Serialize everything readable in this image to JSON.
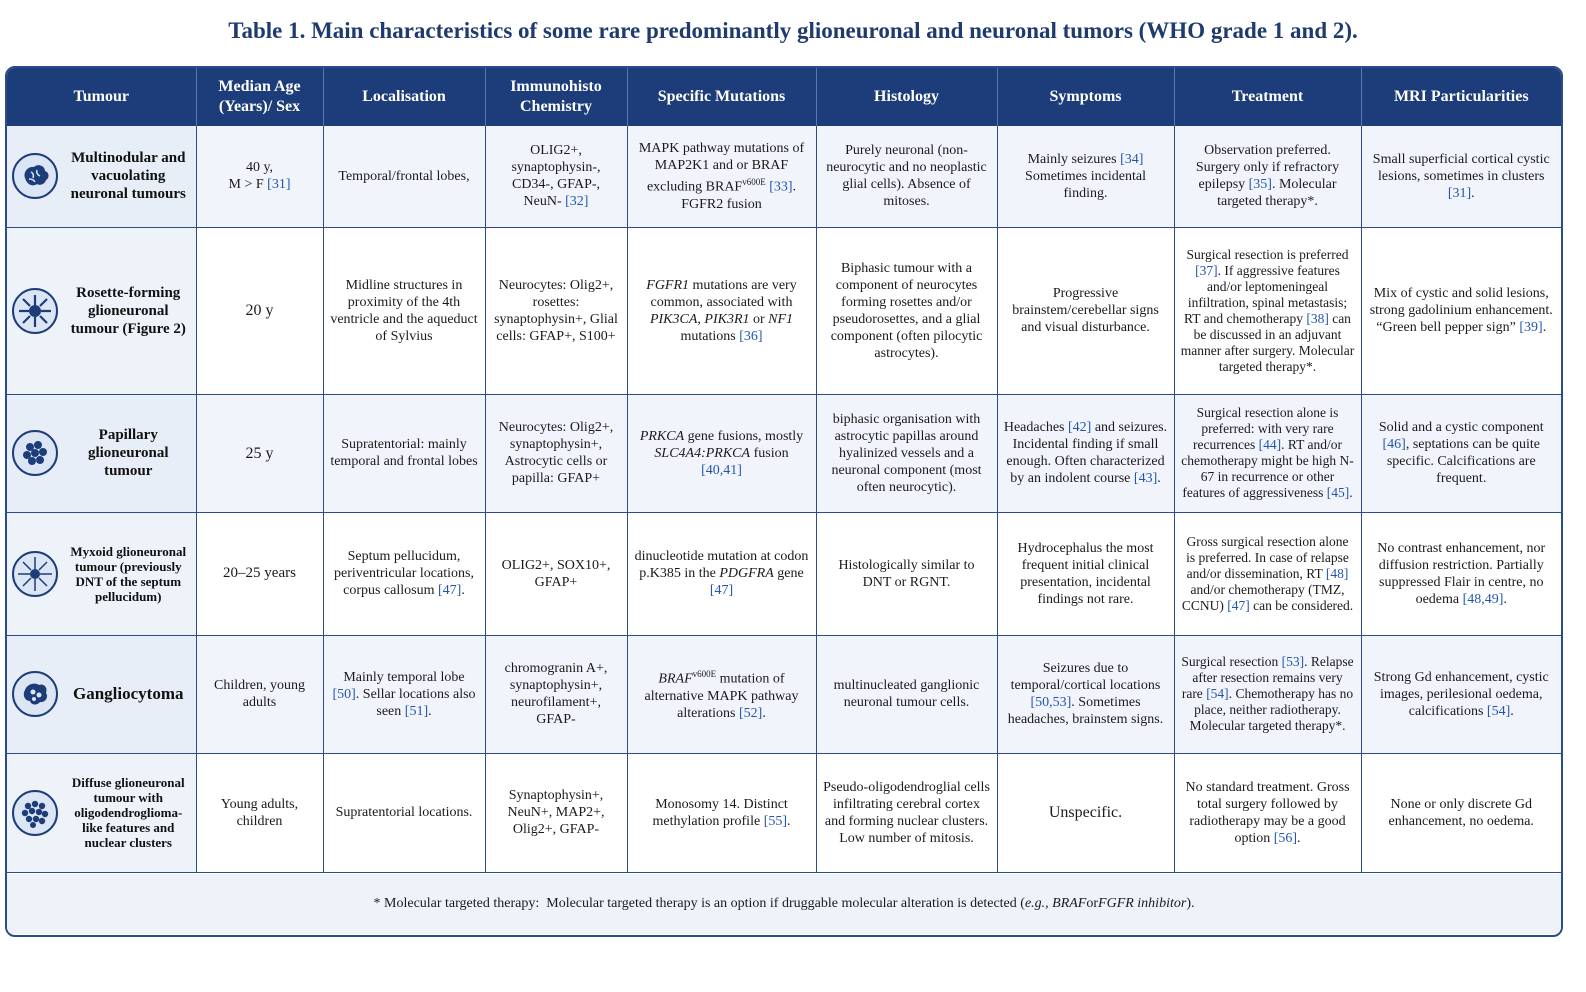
{
  "caption": "Table 1. Main characteristics of some rare predominantly glioneuronal and neuronal tumors (WHO grade 1 and 2).",
  "headers": {
    "tumour": "Tumour",
    "age_line1": "Median Age",
    "age_line2": "(Years)/ Sex",
    "localisation": "Localisation",
    "ihc_line1": "Immunohisto",
    "ihc_line2": "Chemistry",
    "mutations": "Specific Mutations",
    "histology": "Histology",
    "symptoms": "Symptoms",
    "treatment": "Treatment",
    "mri": "MRI Particularities"
  },
  "rows": [
    {
      "icon": "brain-icon",
      "tumour": "Multinodular and vacuolating neuronal tumours",
      "age": "40 y,",
      "age2": "M > F",
      "age_ref": "[31]",
      "localisation": "Temporal/frontal lobes,",
      "ihc": "OLIG2+, synaptophysin-, CD34-, GFAP-, NeuN-",
      "ihc_ref": "[32]",
      "mut_a": "MAPK pathway mutations of MAP2K1 and or BRAF excluding BRAF",
      "mut_sup": "v600E",
      "mut_ref": "[33]",
      "mut_b": ". FGFR2 fusion",
      "histology": "Purely neuronal (non-neurocytic and no neoplastic glial cells). Absence of mitoses.",
      "sym_a": "Mainly seizures",
      "sym_ref": "[34]",
      "sym_b": "Sometimes incidental finding.",
      "tr_a": "Observation preferred. Surgery only if refractory epilepsy",
      "tr_ref": "[35]",
      "tr_b": ". Molecular targeted therapy*.",
      "mri_a": "Small superficial cortical cystic lesions, sometimes in clusters",
      "mri_ref": "[31]",
      "mri_b": "."
    },
    {
      "icon": "neuron-icon",
      "tumour": "Rosette-forming glioneuronal tumour (Figure 2)",
      "age": "20 y",
      "localisation": "Midline structures in proximity of the 4th ventricle and the aqueduct of Sylvius",
      "ihc": "Neurocytes: Olig2+, rosettes: synaptophysin+, Glial cells: GFAP+, S100+",
      "mut_gene1": "FGFR1",
      "mut_a": " mutations are very common, associated with ",
      "mut_gene2": "PIK3CA",
      "mut_sep1": ", ",
      "mut_gene3": "PIK3R1",
      "mut_sep2": " or ",
      "mut_gene4": "NF1",
      "mut_b": " mutations ",
      "mut_ref": "[36]",
      "histology": "Biphasic tumour with a component of neurocytes forming rosettes and/or pseudorosettes, and a glial component (often pilocytic astrocytes).",
      "symptoms": "Progressive brainstem/cerebellar signs and visual disturbance.",
      "tr_a": "Surgical resection is preferred ",
      "tr_ref1": "[37]",
      "tr_b": ". If aggressive features and/or leptomeningeal infiltration, spinal metastasis; RT and chemotherapy ",
      "tr_ref2": "[38]",
      "tr_c": " can be discussed in an adjuvant manner after surgery. Molecular targeted therapy*.",
      "mri_a": "Mix of cystic and solid lesions, strong gadolinium enhancement. “Green bell pepper sign”",
      "mri_ref": "[39]",
      "mri_b": "."
    },
    {
      "icon": "cell-cluster-icon",
      "tumour": "Papillary glioneuronal tumour",
      "age": "25 y",
      "localisation": "Supratentorial: mainly temporal and frontal lobes",
      "ihc": "Neurocytes: Olig2+, synaptophysin+, Astrocytic cells or papilla: GFAP+",
      "mut_gene1": "PRKCA",
      "mut_a": " gene fusions, mostly ",
      "mut_gene2": "SLC4A4:PRKCA",
      "mut_b": " fusion ",
      "mut_ref": "[40,41]",
      "histology": "biphasic organisation with astrocytic papillas around hyalinized vessels and a neuronal component (most often neurocytic).",
      "sym_a": "Headaches ",
      "sym_ref1": "[42]",
      "sym_b": " and seizures. Incidental finding if small enough. Often characterized by an indolent course ",
      "sym_ref2": "[43]",
      "sym_c": ".",
      "tr_a": "Surgical resection alone is preferred: with very rare recurrences ",
      "tr_ref1": "[44]",
      "tr_b": ". RT and/or chemotherapy might be high N-67 in recurrence or other features of aggressiveness ",
      "tr_ref2": "[45]",
      "tr_c": ".",
      "mri_a": "Solid and a cystic component ",
      "mri_ref": "[46]",
      "mri_b": ", septations can be quite specific. Calcifications are frequent."
    },
    {
      "icon": "star-cell-icon",
      "tumour": "Myxoid glioneuronal tumour (previously DNT of the septum pellucidum)",
      "age": "20–25 years",
      "loc_a": "Septum pellucidum, periventricular locations, corpus callosum ",
      "loc_ref": "[47]",
      "loc_b": ".",
      "ihc": "OLIG2+, SOX10+, GFAP+",
      "mut_a": "dinucleotide mutation at codon p.K385 in the ",
      "mut_gene1": "PDGFRA",
      "mut_b": " gene ",
      "mut_ref": "[47]",
      "histology": "Histologically similar to DNT or RGNT.",
      "symptoms": "Hydrocephalus the most frequent initial clinical presentation, incidental findings not rare.",
      "tr_a": "Gross surgical resection alone is preferred. In case of relapse and/or dissemination, RT ",
      "tr_ref1": "[48]",
      "tr_b": " and/or chemotherapy (TMZ, CCNU) ",
      "tr_ref2": "[47]",
      "tr_c": " can be considered.",
      "mri_a": "No contrast enhancement, nor diffusion restriction. Partially suppressed Flair in centre, no oedema ",
      "mri_ref": "[48,49]",
      "mri_b": "."
    },
    {
      "icon": "ganglion-cell-icon",
      "tumour": "Gangliocytoma",
      "age": "Children, young adults",
      "loc_a": "Mainly temporal lobe ",
      "loc_ref1": "[50]",
      "loc_b": ". Sellar locations also seen ",
      "loc_ref2": "[51]",
      "loc_c": ".",
      "ihc": "chromogranin A+, synaptophysin+, neurofilament+, GFAP-",
      "mut_gene1": "BRAF",
      "mut_sup": "v600E",
      "mut_a": " mutation of alternative MAPK pathway alterations ",
      "mut_ref": "[52]",
      "mut_b": ".",
      "histology": "multinucleated ganglionic neuronal tumour cells.",
      "sym_a": "Seizures due to temporal/cortical locations ",
      "sym_ref": "[50,53]",
      "sym_b": ". Sometimes headaches, brainstem signs.",
      "tr_a": "Surgical resection ",
      "tr_ref1": "[53]",
      "tr_b": ". Relapse after resection remains very rare ",
      "tr_ref2": "[54]",
      "tr_c": ". Chemotherapy has no place, neither radiotherapy. Molecular targeted therapy*.",
      "mri_a": "Strong Gd enhancement, cystic images, perilesional oedema, calcifications ",
      "mri_ref": "[54]",
      "mri_b": "."
    },
    {
      "icon": "dense-cells-icon",
      "tumour": "Diffuse glioneuronal tumour with oligodendroglioma-like features and nuclear clusters",
      "age": "Young adults, children",
      "localisation": "Supratentorial locations.",
      "ihc": "Synaptophysin+, NeuN+, MAP2+, Olig2+, GFAP-",
      "mut_a": "Monosomy 14. Distinct methylation profile ",
      "mut_ref": "[55]",
      "mut_b": ".",
      "histology": "Pseudo-oligodendroglial cells infiltrating cerebral cortex and forming nuclear clusters. Low number of mitosis.",
      "symptoms": "Unspecific.",
      "tr_a": "No standard treatment. Gross total surgery followed by radiotherapy may be a good option ",
      "tr_ref": "[56]",
      "tr_b": ".",
      "mri": "None or only discrete Gd enhancement, no oedema."
    }
  ],
  "footnote": {
    "label": "* Molecular targeted therapy:",
    "text": "Molecular targeted therapy is an option if druggable molecular alteration is detected (",
    "italic": "e.g., BRAF",
    "mid": " or ",
    "italic2": "FGFR inhibitor",
    "end": ")."
  }
}
